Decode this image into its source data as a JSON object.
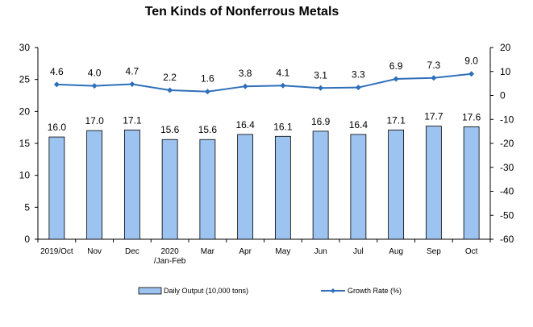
{
  "chart_data": {
    "type": "bar",
    "title": "Ten Kinds of Nonferrous Metals",
    "categories": [
      "2019/Oct",
      "Nov",
      "Dec",
      "2020\n/Jan-Feb",
      "Mar",
      "Apr",
      "May",
      "Jun",
      "Jul",
      "Aug",
      "Sep",
      "Oct"
    ],
    "series": [
      {
        "name": "Daily Output (10,000 tons)",
        "type": "bar",
        "axis": "left",
        "color": "#9dc3f0",
        "values": [
          16.0,
          17.0,
          17.1,
          15.6,
          15.6,
          16.4,
          16.1,
          16.9,
          16.4,
          17.1,
          17.7,
          17.6
        ],
        "labels": [
          "16.0",
          "17.0",
          "17.1",
          "15.6",
          "15.6",
          "16.4",
          "16.1",
          "16.9",
          "16.4",
          "17.1",
          "17.7",
          "17.6"
        ]
      },
      {
        "name": "Growth Rate (%)",
        "type": "line",
        "axis": "right",
        "color": "#2e6fba",
        "values": [
          4.6,
          4.0,
          4.7,
          2.2,
          1.6,
          3.8,
          4.1,
          3.1,
          3.3,
          6.9,
          7.3,
          9.0
        ],
        "labels": [
          "4.6",
          "4.0",
          "4.7",
          "2.2",
          "1.6",
          "3.8",
          "4.1",
          "3.1",
          "3.3",
          "6.9",
          "7.3",
          "9.0"
        ]
      }
    ],
    "ylim_left": [
      0,
      30
    ],
    "yticks_left": [
      "0",
      "5",
      "10",
      "15",
      "20",
      "25",
      "30"
    ],
    "ylim_right": [
      -60,
      20
    ],
    "yticks_right": [
      "-60",
      "-50",
      "-40",
      "-30",
      "-20",
      "-10",
      "0",
      "10",
      "20"
    ],
    "grid": false,
    "legend_position": "bottom"
  }
}
